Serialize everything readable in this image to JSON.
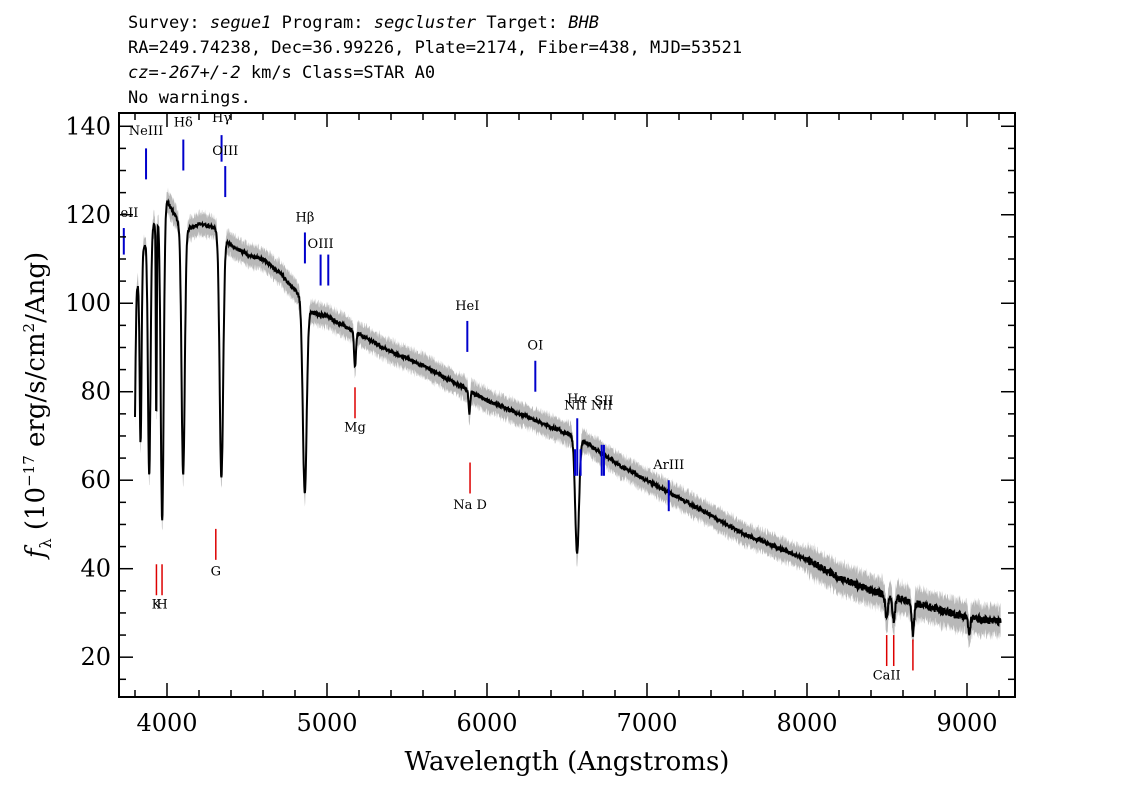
{
  "header": {
    "line1": {
      "survey_label": "Survey:",
      "survey": "segue1",
      "program_label": "Program:",
      "program": "segcluster",
      "target_label": "Target:",
      "target": "BHB"
    },
    "line2": "RA=249.74238, Dec=36.99226, Plate=2174, Fiber=438, MJD=53521",
    "line3": {
      "cz_label": "cz=",
      "cz": "-267+/-2",
      "rest": " km/s Class=STAR A0"
    },
    "line4": "No warnings."
  },
  "chart_data": {
    "type": "line",
    "xlabel": "Wavelength (Angstroms)",
    "ylabel": "f_λ (10^-17 erg/s/cm^2/Ang)",
    "xlim": [
      3700,
      9300
    ],
    "ylim": [
      11,
      143
    ],
    "x_ticks": [
      4000,
      5000,
      6000,
      7000,
      8000,
      9000
    ],
    "y_ticks": [
      20,
      40,
      60,
      80,
      100,
      120,
      140
    ],
    "spectrum": {
      "color": "#000000",
      "noise_color": "#b8b8b8",
      "continuum": [
        [
          3800,
          100
        ],
        [
          3850,
          112
        ],
        [
          3900,
          117
        ],
        [
          3950,
          119
        ],
        [
          4000,
          123
        ],
        [
          4050,
          120
        ],
        [
          4100,
          116
        ],
        [
          4200,
          118
        ],
        [
          4300,
          117
        ],
        [
          4400,
          113
        ],
        [
          4500,
          111
        ],
        [
          4600,
          110
        ],
        [
          4700,
          107
        ],
        [
          4800,
          103
        ],
        [
          4900,
          98
        ],
        [
          5000,
          97
        ],
        [
          5100,
          95
        ],
        [
          5200,
          93
        ],
        [
          5400,
          89
        ],
        [
          5600,
          86
        ],
        [
          5800,
          82
        ],
        [
          6000,
          78
        ],
        [
          6200,
          75
        ],
        [
          6400,
          72
        ],
        [
          6600,
          69
        ],
        [
          6800,
          64
        ],
        [
          7000,
          60
        ],
        [
          7200,
          56
        ],
        [
          7400,
          52
        ],
        [
          7600,
          48
        ],
        [
          7800,
          45
        ],
        [
          8000,
          42
        ],
        [
          8200,
          38
        ],
        [
          8400,
          35
        ],
        [
          8600,
          33
        ],
        [
          8800,
          31
        ],
        [
          9000,
          29
        ],
        [
          9200,
          28
        ]
      ],
      "absorption": [
        {
          "center": 3798,
          "depth": 28,
          "width": 5
        },
        {
          "center": 3835,
          "depth": 40,
          "width": 6
        },
        {
          "center": 3889,
          "depth": 55,
          "width": 8
        },
        {
          "center": 3933,
          "depth": 45,
          "width": 3
        },
        {
          "center": 3970,
          "depth": 70,
          "width": 9
        },
        {
          "center": 4101,
          "depth": 55,
          "width": 10
        },
        {
          "center": 4340,
          "depth": 55,
          "width": 11
        },
        {
          "center": 4861,
          "depth": 43,
          "width": 12
        },
        {
          "center": 5175,
          "depth": 8,
          "width": 6
        },
        {
          "center": 5890,
          "depth": 5,
          "width": 5
        },
        {
          "center": 6563,
          "depth": 26,
          "width": 12
        },
        {
          "center": 8498,
          "depth": 5,
          "width": 8
        },
        {
          "center": 8542,
          "depth": 5,
          "width": 8
        },
        {
          "center": 8662,
          "depth": 7,
          "width": 8
        },
        {
          "center": 9014,
          "depth": 4,
          "width": 6
        }
      ]
    },
    "emission_lines": [
      {
        "label": "HeII",
        "x": 3730,
        "y_top": 117,
        "y_bottom": 111,
        "label_y": 119.5
      },
      {
        "label": "NeIII",
        "x": 3869,
        "y_top": 135,
        "y_bottom": 128,
        "label_y": 138
      },
      {
        "label": "Hδ",
        "x": 4102,
        "y_top": 137,
        "y_bottom": 130,
        "label_y": 140
      },
      {
        "label": "Hγ",
        "x": 4341,
        "y_top": 138,
        "y_bottom": 132,
        "label_y": 141
      },
      {
        "label": "OIII",
        "x": 4364,
        "y_top": 131,
        "y_bottom": 124,
        "label_y": 133.5
      },
      {
        "label": "Hβ",
        "x": 4862,
        "y_top": 116,
        "y_bottom": 109,
        "label_y": 118.5
      },
      {
        "label": "OIII",
        "x": 4960,
        "y_top": 111,
        "y_bottom": 104,
        "label_y": 112.5
      },
      {
        "label": "",
        "x": 5008,
        "y_top": 111,
        "y_bottom": 104,
        "label_y": 112.5
      },
      {
        "label": "HeI",
        "x": 5877,
        "y_top": 96,
        "y_bottom": 89,
        "label_y": 98.5
      },
      {
        "label": "OI",
        "x": 6302,
        "y_top": 87,
        "y_bottom": 80,
        "label_y": 89.5
      },
      {
        "label": "NII",
        "x": 6550,
        "y_top": 67,
        "y_bottom": 61,
        "label_y": 76
      },
      {
        "label": "Hα",
        "x": 6564,
        "y_top": 74,
        "y_bottom": 61,
        "label_y": 77.5
      },
      {
        "label": "",
        "x": 6585,
        "y_top": 67,
        "y_bottom": 61,
        "label_y": 76
      },
      {
        "label": "NII",
        "x": 6717,
        "y_top": 68,
        "y_bottom": 61,
        "label_y": 76
      },
      {
        "label": "SII",
        "x": 6731,
        "y_top": 68,
        "y_bottom": 61,
        "label_y": 77
      },
      {
        "label": "ArIII",
        "x": 7136,
        "y_top": 60,
        "y_bottom": 53,
        "label_y": 62.5
      }
    ],
    "absorption_lines": [
      {
        "label": "Mg",
        "x": 5175,
        "y_top": 81,
        "y_bottom": 74,
        "label_y": 71
      },
      {
        "label": "Na  D",
        "x": 5894,
        "y_top": 64,
        "y_bottom": 57,
        "label_y": 53.5
      },
      {
        "label": "G",
        "x": 4305,
        "y_top": 49,
        "y_bottom": 42,
        "label_y": 38.5
      },
      {
        "label": "K",
        "x": 3934,
        "y_top": 41,
        "y_bottom": 34,
        "label_y": 31
      },
      {
        "label": "H",
        "x": 3969,
        "y_top": 41,
        "y_bottom": 34,
        "label_y": 31
      },
      {
        "label": "CaII",
        "x": 8498,
        "y_top": 25,
        "y_bottom": 18,
        "label_y": 15
      },
      {
        "label": "",
        "x": 8542,
        "y_top": 25,
        "y_bottom": 18,
        "label_y": 15
      },
      {
        "label": "",
        "x": 8662,
        "y_top": 24,
        "y_bottom": 17,
        "label_y": 15
      }
    ],
    "emission_color": "#0000cc",
    "absorption_color": "#dd0000"
  }
}
